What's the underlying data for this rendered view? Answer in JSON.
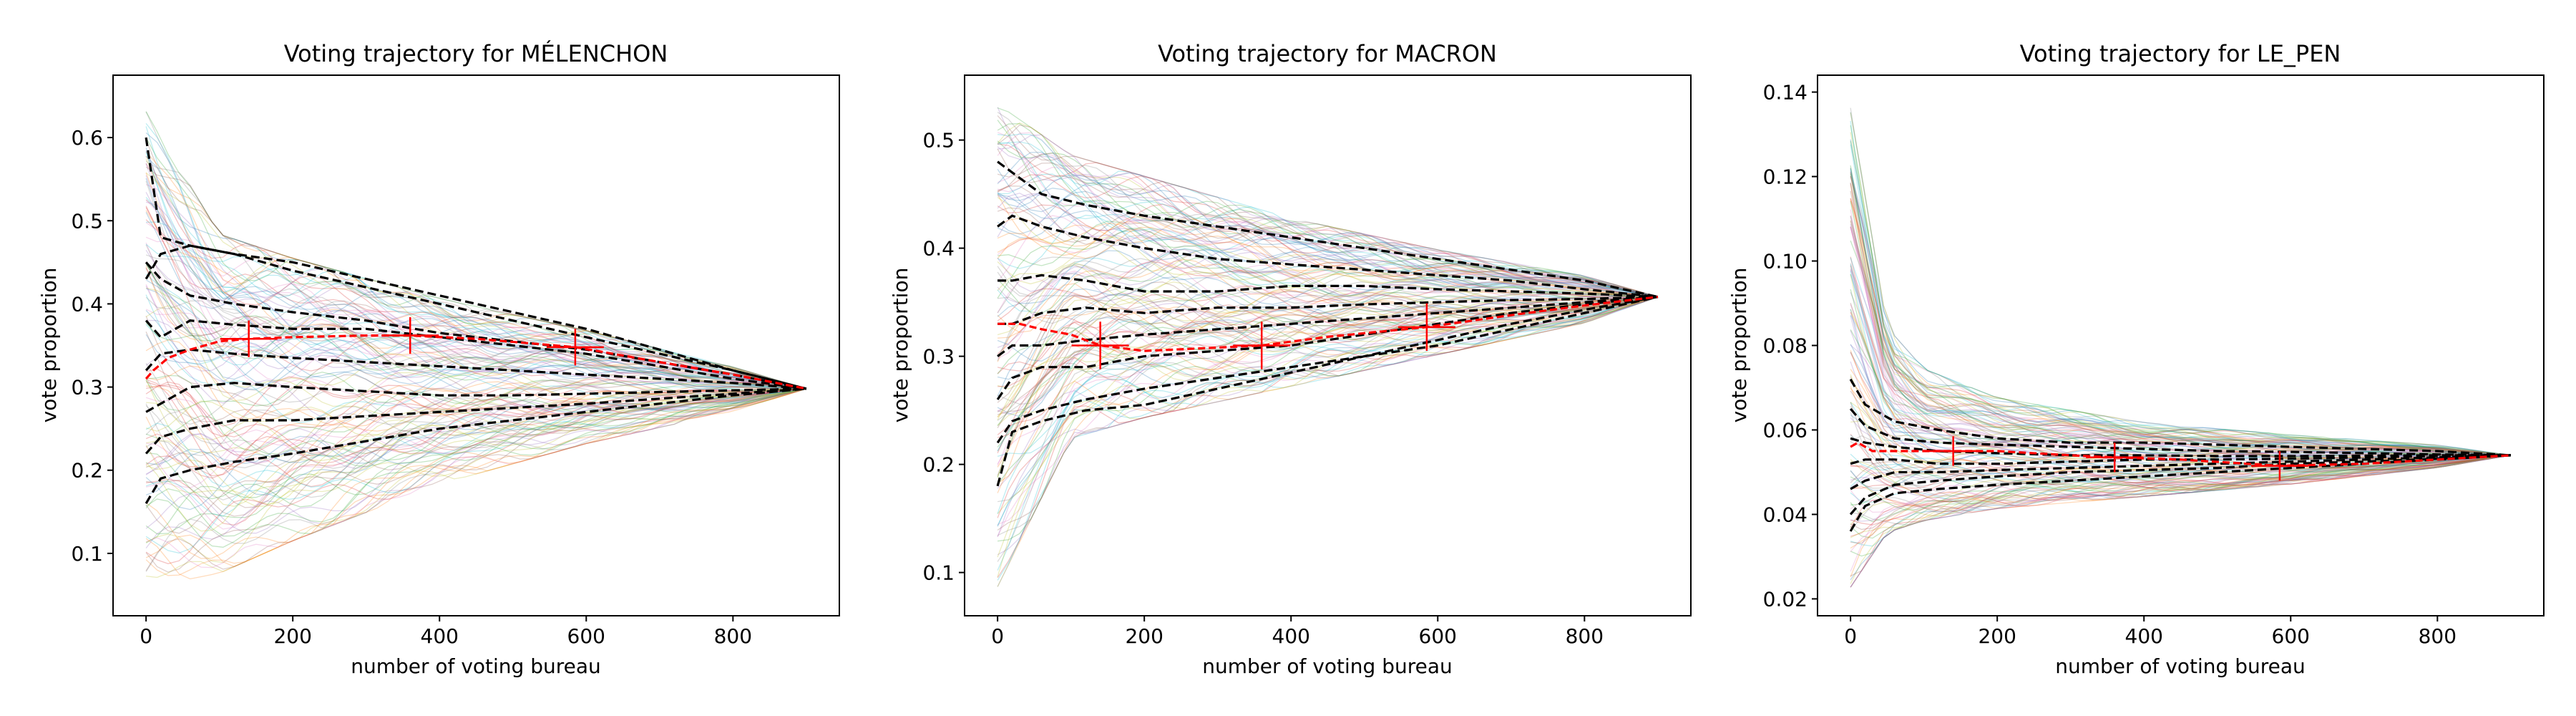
{
  "chart_data": [
    {
      "type": "line",
      "title": "Voting trajectory for MÉLENCHON",
      "xlabel": "number of voting bureau",
      "ylabel": "vote proportion",
      "xlim": [
        -45,
        945
      ],
      "ylim": [
        0.025,
        0.675
      ],
      "xticks": [
        0,
        200,
        400,
        600,
        800
      ],
      "yticks": [
        0.1,
        0.2,
        0.3,
        0.4,
        0.5,
        0.6
      ],
      "xtick_labels": [
        "0",
        "200",
        "400",
        "600",
        "800"
      ],
      "ytick_labels": [
        "0.1",
        "0.2",
        "0.3",
        "0.4",
        "0.5",
        "0.6"
      ],
      "grid": false,
      "n_points": 900,
      "final_value": 0.298,
      "envelope": [
        {
          "x": 0,
          "min": 0.05,
          "max": 0.64
        },
        {
          "x": 100,
          "min": 0.07,
          "max": 0.49
        },
        {
          "x": 200,
          "min": 0.11,
          "max": 0.46
        },
        {
          "x": 400,
          "min": 0.18,
          "max": 0.41
        },
        {
          "x": 600,
          "min": 0.23,
          "max": 0.37
        },
        {
          "x": 800,
          "min": 0.27,
          "max": 0.325
        },
        {
          "x": 900,
          "min": 0.298,
          "max": 0.298
        }
      ],
      "series": [
        {
          "x": [
            0,
            20,
            60,
            120,
            200,
            300,
            400,
            500,
            600,
            700,
            800,
            900
          ],
          "values": [
            0.6,
            0.48,
            0.47,
            0.46,
            0.45,
            0.43,
            0.41,
            0.39,
            0.37,
            0.345,
            0.32,
            0.298
          ]
        },
        {
          "x": [
            0,
            20,
            60,
            120,
            200,
            300,
            400,
            500,
            600,
            700,
            800,
            900
          ],
          "values": [
            0.45,
            0.43,
            0.41,
            0.4,
            0.39,
            0.38,
            0.365,
            0.355,
            0.345,
            0.33,
            0.315,
            0.298
          ]
        },
        {
          "x": [
            0,
            20,
            60,
            120,
            200,
            300,
            400,
            500,
            600,
            700,
            800,
            900
          ],
          "values": [
            0.38,
            0.36,
            0.38,
            0.375,
            0.37,
            0.37,
            0.36,
            0.35,
            0.34,
            0.325,
            0.31,
            0.298
          ]
        },
        {
          "x": [
            0,
            20,
            60,
            120,
            200,
            300,
            400,
            500,
            600,
            700,
            800,
            900
          ],
          "values": [
            0.32,
            0.34,
            0.345,
            0.34,
            0.335,
            0.33,
            0.325,
            0.32,
            0.315,
            0.31,
            0.305,
            0.298
          ]
        },
        {
          "x": [
            0,
            20,
            60,
            120,
            200,
            300,
            400,
            500,
            600,
            700,
            800,
            900
          ],
          "values": [
            0.27,
            0.28,
            0.3,
            0.305,
            0.3,
            0.295,
            0.29,
            0.29,
            0.292,
            0.294,
            0.296,
            0.298
          ]
        },
        {
          "x": [
            0,
            20,
            60,
            120,
            200,
            300,
            400,
            500,
            600,
            700,
            800,
            900
          ],
          "values": [
            0.22,
            0.24,
            0.25,
            0.26,
            0.26,
            0.265,
            0.27,
            0.275,
            0.28,
            0.286,
            0.292,
            0.298
          ]
        },
        {
          "x": [
            0,
            20,
            60,
            120,
            200,
            300,
            400,
            500,
            600,
            700,
            800,
            900
          ],
          "values": [
            0.16,
            0.19,
            0.2,
            0.21,
            0.22,
            0.235,
            0.25,
            0.26,
            0.27,
            0.28,
            0.29,
            0.298
          ]
        },
        {
          "x": [
            0,
            20,
            60,
            120,
            200,
            300,
            400,
            500,
            600,
            700,
            800,
            900
          ],
          "values": [
            0.43,
            0.46,
            0.47,
            0.46,
            0.44,
            0.42,
            0.4,
            0.38,
            0.36,
            0.34,
            0.32,
            0.298
          ]
        }
      ],
      "highlighted": {
        "x": [
          0,
          10,
          30,
          60,
          100,
          140,
          200,
          300,
          360,
          450,
          585,
          700,
          800,
          900
        ],
        "values": [
          0.31,
          0.32,
          0.335,
          0.345,
          0.355,
          0.358,
          0.36,
          0.362,
          0.362,
          0.358,
          0.348,
          0.33,
          0.315,
          0.298
        ],
        "errorbars": [
          {
            "x": 140,
            "y": 0.358,
            "err": 0.022
          },
          {
            "x": 360,
            "y": 0.362,
            "err": 0.022
          },
          {
            "x": 585,
            "y": 0.348,
            "err": 0.022
          }
        ]
      }
    },
    {
      "type": "line",
      "title": "Voting trajectory for MACRON",
      "xlabel": "number of voting bureau",
      "ylabel": "vote proportion",
      "xlim": [
        -45,
        945
      ],
      "ylim": [
        0.06,
        0.56
      ],
      "xticks": [
        0,
        200,
        400,
        600,
        800
      ],
      "yticks": [
        0.1,
        0.2,
        0.3,
        0.4,
        0.5
      ],
      "xtick_labels": [
        "0",
        "200",
        "400",
        "600",
        "800"
      ],
      "ytick_labels": [
        "0.1",
        "0.2",
        "0.3",
        "0.4",
        "0.5"
      ],
      "grid": false,
      "n_points": 900,
      "final_value": 0.355,
      "envelope": [
        {
          "x": 0,
          "min": 0.08,
          "max": 0.54
        },
        {
          "x": 100,
          "min": 0.22,
          "max": 0.49
        },
        {
          "x": 200,
          "min": 0.24,
          "max": 0.47
        },
        {
          "x": 400,
          "min": 0.27,
          "max": 0.43
        },
        {
          "x": 600,
          "min": 0.3,
          "max": 0.4
        },
        {
          "x": 800,
          "min": 0.33,
          "max": 0.375
        },
        {
          "x": 900,
          "min": 0.355,
          "max": 0.355
        }
      ],
      "series": [
        {
          "x": [
            0,
            20,
            60,
            120,
            200,
            300,
            400,
            500,
            600,
            700,
            800,
            900
          ],
          "values": [
            0.48,
            0.47,
            0.45,
            0.44,
            0.43,
            0.42,
            0.41,
            0.4,
            0.39,
            0.38,
            0.37,
            0.355
          ]
        },
        {
          "x": [
            0,
            20,
            60,
            120,
            200,
            300,
            400,
            500,
            600,
            700,
            800,
            900
          ],
          "values": [
            0.42,
            0.43,
            0.42,
            0.41,
            0.4,
            0.39,
            0.385,
            0.38,
            0.375,
            0.37,
            0.362,
            0.355
          ]
        },
        {
          "x": [
            0,
            20,
            60,
            120,
            200,
            300,
            400,
            500,
            600,
            700,
            800,
            900
          ],
          "values": [
            0.37,
            0.37,
            0.375,
            0.37,
            0.36,
            0.36,
            0.365,
            0.365,
            0.362,
            0.36,
            0.358,
            0.355
          ]
        },
        {
          "x": [
            0,
            20,
            60,
            120,
            200,
            300,
            400,
            500,
            600,
            700,
            800,
            900
          ],
          "values": [
            0.33,
            0.33,
            0.34,
            0.345,
            0.34,
            0.345,
            0.345,
            0.348,
            0.35,
            0.352,
            0.353,
            0.355
          ]
        },
        {
          "x": [
            0,
            20,
            60,
            120,
            200,
            300,
            400,
            500,
            600,
            700,
            800,
            900
          ],
          "values": [
            0.3,
            0.31,
            0.31,
            0.315,
            0.32,
            0.325,
            0.33,
            0.335,
            0.34,
            0.345,
            0.35,
            0.355
          ]
        },
        {
          "x": [
            0,
            20,
            60,
            120,
            200,
            300,
            400,
            500,
            600,
            700,
            800,
            900
          ],
          "values": [
            0.26,
            0.28,
            0.29,
            0.29,
            0.3,
            0.305,
            0.31,
            0.32,
            0.33,
            0.34,
            0.348,
            0.355
          ]
        },
        {
          "x": [
            0,
            20,
            60,
            120,
            200,
            300,
            400,
            500,
            600,
            700,
            800,
            900
          ],
          "values": [
            0.22,
            0.24,
            0.25,
            0.26,
            0.27,
            0.28,
            0.29,
            0.3,
            0.31,
            0.325,
            0.34,
            0.355
          ]
        },
        {
          "x": [
            0,
            20,
            60,
            120,
            200,
            300,
            400,
            500,
            600,
            700,
            800,
            900
          ],
          "values": [
            0.18,
            0.23,
            0.24,
            0.25,
            0.255,
            0.27,
            0.285,
            0.3,
            0.315,
            0.33,
            0.343,
            0.355
          ]
        }
      ],
      "highlighted": {
        "x": [
          0,
          10,
          30,
          60,
          100,
          140,
          200,
          300,
          360,
          450,
          585,
          700,
          800,
          900
        ],
        "values": [
          0.33,
          0.33,
          0.33,
          0.325,
          0.32,
          0.31,
          0.305,
          0.308,
          0.31,
          0.318,
          0.327,
          0.338,
          0.347,
          0.355
        ],
        "errorbars": [
          {
            "x": 140,
            "y": 0.31,
            "err": 0.022
          },
          {
            "x": 360,
            "y": 0.31,
            "err": 0.022
          },
          {
            "x": 585,
            "y": 0.327,
            "err": 0.022
          }
        ]
      }
    },
    {
      "type": "line",
      "title": "Voting trajectory for LE_PEN",
      "xlabel": "number of voting bureau",
      "ylabel": "vote proportion",
      "xlim": [
        -45,
        945
      ],
      "ylim": [
        0.016,
        0.144
      ],
      "xticks": [
        0,
        200,
        400,
        600,
        800
      ],
      "yticks": [
        0.02,
        0.04,
        0.06,
        0.08,
        0.1,
        0.12,
        0.14
      ],
      "xtick_labels": [
        "0",
        "200",
        "400",
        "600",
        "800"
      ],
      "ytick_labels": [
        "0.02",
        "0.04",
        "0.06",
        "0.08",
        "0.10",
        "0.12",
        "0.14"
      ],
      "grid": false,
      "n_points": 900,
      "final_value": 0.054,
      "envelope": [
        {
          "x": 0,
          "min": 0.021,
          "max": 0.138
        },
        {
          "x": 50,
          "min": 0.035,
          "max": 0.085
        },
        {
          "x": 100,
          "min": 0.038,
          "max": 0.075
        },
        {
          "x": 200,
          "min": 0.041,
          "max": 0.068
        },
        {
          "x": 400,
          "min": 0.044,
          "max": 0.062
        },
        {
          "x": 600,
          "min": 0.047,
          "max": 0.059
        },
        {
          "x": 800,
          "min": 0.051,
          "max": 0.0565
        },
        {
          "x": 900,
          "min": 0.054,
          "max": 0.054
        }
      ],
      "series": [
        {
          "x": [
            0,
            20,
            60,
            120,
            200,
            300,
            400,
            500,
            600,
            700,
            800,
            900
          ],
          "values": [
            0.072,
            0.066,
            0.062,
            0.06,
            0.058,
            0.057,
            0.057,
            0.0565,
            0.056,
            0.0555,
            0.055,
            0.054
          ]
        },
        {
          "x": [
            0,
            20,
            60,
            120,
            200,
            300,
            400,
            500,
            600,
            700,
            800,
            900
          ],
          "values": [
            0.065,
            0.061,
            0.058,
            0.057,
            0.0565,
            0.056,
            0.0555,
            0.055,
            0.0548,
            0.0545,
            0.0542,
            0.054
          ]
        },
        {
          "x": [
            0,
            20,
            60,
            120,
            200,
            300,
            400,
            500,
            600,
            700,
            800,
            900
          ],
          "values": [
            0.058,
            0.057,
            0.056,
            0.055,
            0.0545,
            0.054,
            0.054,
            0.0538,
            0.0538,
            0.0539,
            0.054,
            0.054
          ]
        },
        {
          "x": [
            0,
            20,
            60,
            120,
            200,
            300,
            400,
            500,
            600,
            700,
            800,
            900
          ],
          "values": [
            0.052,
            0.053,
            0.053,
            0.052,
            0.052,
            0.0525,
            0.053,
            0.053,
            0.0532,
            0.0535,
            0.0538,
            0.054
          ]
        },
        {
          "x": [
            0,
            20,
            60,
            120,
            200,
            300,
            400,
            500,
            600,
            700,
            800,
            900
          ],
          "values": [
            0.046,
            0.048,
            0.05,
            0.05,
            0.0505,
            0.051,
            0.0515,
            0.052,
            0.0525,
            0.053,
            0.0535,
            0.054
          ]
        },
        {
          "x": [
            0,
            20,
            60,
            120,
            200,
            300,
            400,
            500,
            600,
            700,
            800,
            900
          ],
          "values": [
            0.04,
            0.044,
            0.047,
            0.048,
            0.049,
            0.05,
            0.0505,
            0.051,
            0.052,
            0.0525,
            0.0532,
            0.054
          ]
        },
        {
          "x": [
            0,
            20,
            60,
            120,
            200,
            300,
            400,
            500,
            600,
            700,
            800,
            900
          ],
          "values": [
            0.036,
            0.042,
            0.045,
            0.046,
            0.047,
            0.048,
            0.049,
            0.05,
            0.051,
            0.052,
            0.053,
            0.054
          ]
        }
      ],
      "highlighted": {
        "x": [
          0,
          10,
          30,
          60,
          100,
          140,
          200,
          300,
          360,
          450,
          585,
          700,
          800,
          900
        ],
        "values": [
          0.056,
          0.057,
          0.055,
          0.055,
          0.055,
          0.055,
          0.055,
          0.054,
          0.0535,
          0.053,
          0.0515,
          0.052,
          0.053,
          0.054
        ],
        "errorbars": [
          {
            "x": 140,
            "y": 0.055,
            "err": 0.0035
          },
          {
            "x": 360,
            "y": 0.0535,
            "err": 0.0035
          },
          {
            "x": 585,
            "y": 0.0515,
            "err": 0.0035
          }
        ]
      }
    }
  ]
}
